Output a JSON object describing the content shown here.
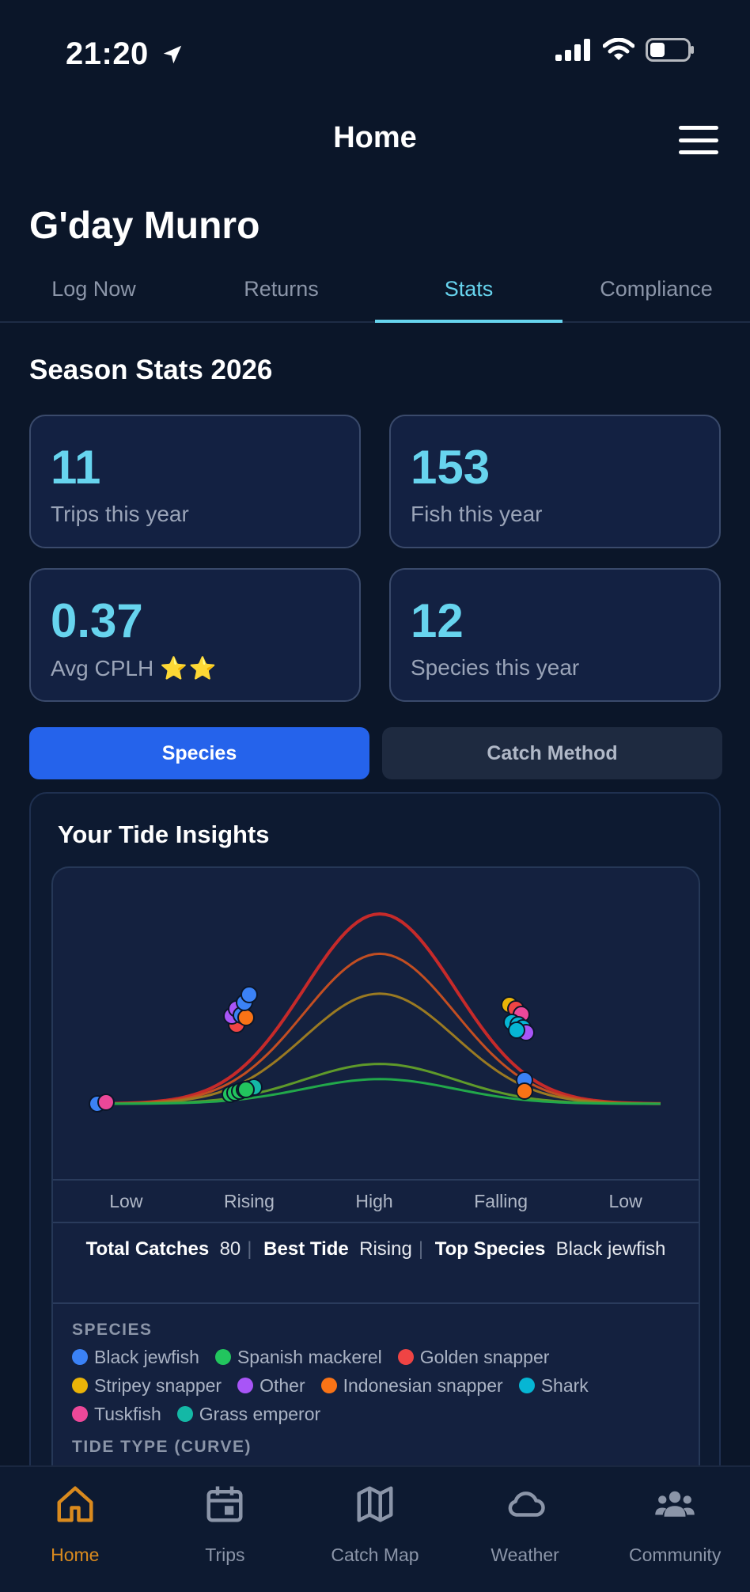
{
  "status_bar": {
    "time": "21:20"
  },
  "header": {
    "title": "Home"
  },
  "greeting": "G'day Munro",
  "tabs": [
    {
      "label": "Log Now",
      "active": false
    },
    {
      "label": "Returns",
      "active": false
    },
    {
      "label": "Stats",
      "active": true
    },
    {
      "label": "Compliance",
      "active": false
    }
  ],
  "season_title": "Season Stats 2026",
  "stats": [
    {
      "value": "11",
      "label": "Trips this year"
    },
    {
      "value": "153",
      "label": "Fish this year"
    },
    {
      "value": "0.37",
      "label": "Avg CPLH",
      "stars": "⭐⭐"
    },
    {
      "value": "12",
      "label": "Species this year"
    }
  ],
  "toggles": {
    "active": "Species",
    "inactive": "Catch Method"
  },
  "insights": {
    "title": "Your Tide Insights",
    "x_labels": [
      "Low",
      "Rising",
      "High",
      "Falling",
      "Low"
    ],
    "summary": {
      "total_label": "Total Catches",
      "total_value": "80",
      "best_label": "Best Tide",
      "best_value": "Rising",
      "top_label": "Top Species",
      "top_value": "Black jewfish"
    },
    "legend_heading": "SPECIES",
    "species": [
      {
        "name": "Black jewfish",
        "color": "#3b82f6"
      },
      {
        "name": "Spanish mackerel",
        "color": "#22c55e"
      },
      {
        "name": "Golden snapper",
        "color": "#ef4444"
      },
      {
        "name": "Stripey snapper",
        "color": "#eab308"
      },
      {
        "name": "Other",
        "color": "#a855f7"
      },
      {
        "name": "Indonesian snapper",
        "color": "#f97316"
      },
      {
        "name": "Shark",
        "color": "#06b6d4"
      },
      {
        "name": "Tuskfish",
        "color": "#ec4899"
      },
      {
        "name": "Grass emperor",
        "color": "#14b8a6"
      }
    ],
    "tide_heading": "TIDE TYPE (CURVE)",
    "curves": [
      {
        "peak": 1.0,
        "color": "#c62a2a"
      },
      {
        "peak": 0.79,
        "color": "#c24e22"
      },
      {
        "peak": 0.58,
        "color": "#9a7a22"
      },
      {
        "peak": 0.21,
        "color": "#5f9a2a"
      },
      {
        "peak": 0.13,
        "color": "#22a84a"
      }
    ]
  },
  "bottom_nav": [
    {
      "label": "Home",
      "icon": "home-icon",
      "active": true
    },
    {
      "label": "Trips",
      "icon": "calendar-icon",
      "active": false
    },
    {
      "label": "Catch Map",
      "icon": "map-icon",
      "active": false
    },
    {
      "label": "Weather",
      "icon": "cloud-icon",
      "active": false
    },
    {
      "label": "Community",
      "icon": "people-icon",
      "active": false
    }
  ]
}
